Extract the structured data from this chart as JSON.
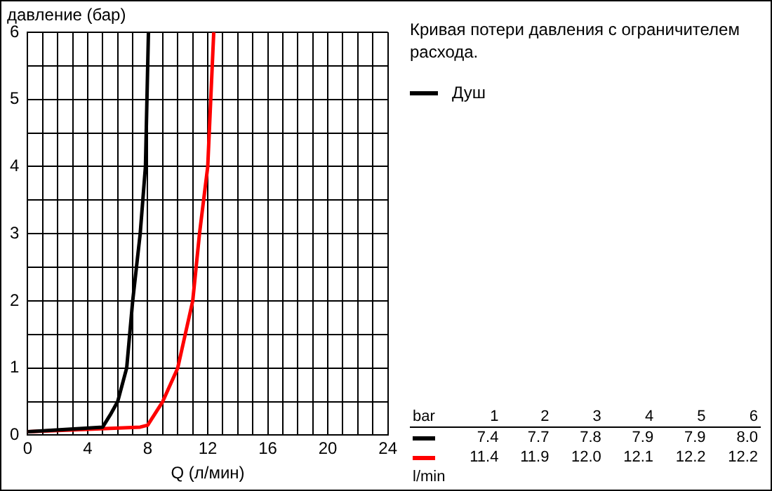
{
  "chart_data": {
    "type": "line",
    "title": "Кривая потери давления с ограничителем расхода.",
    "xlabel": "Q (л/мин)",
    "ylabel": "давление (бар)",
    "xlim": [
      0,
      24
    ],
    "ylim": [
      0,
      6
    ],
    "xticks": [
      0,
      {
        "value": 1,
        "label": null
      },
      {
        "value": 2,
        "label": null
      },
      {
        "value": 3,
        "label": null
      },
      4,
      {
        "value": 5,
        "label": null
      },
      {
        "value": 6,
        "label": null
      },
      {
        "value": 7,
        "label": null
      },
      8,
      {
        "value": 9,
        "label": null
      },
      {
        "value": 10,
        "label": null
      },
      {
        "value": 11,
        "label": null
      },
      12,
      {
        "value": 13,
        "label": null
      },
      {
        "value": 14,
        "label": null
      },
      {
        "value": 15,
        "label": null
      },
      16,
      {
        "value": 17,
        "label": null
      },
      {
        "value": 18,
        "label": null
      },
      {
        "value": 19,
        "label": null
      },
      20,
      {
        "value": 21,
        "label": null
      },
      {
        "value": 22,
        "label": null
      },
      {
        "value": 23,
        "label": null
      },
      24
    ],
    "yticks": [
      0,
      {
        "value": 0.5,
        "label": null
      },
      1,
      {
        "value": 1.5,
        "label": null
      },
      2,
      {
        "value": 2.5,
        "label": null
      },
      3,
      {
        "value": 3.5,
        "label": null
      },
      4,
      {
        "value": 4.5,
        "label": null
      },
      5,
      {
        "value": 5.5,
        "label": null
      },
      6
    ],
    "grid": true,
    "legend": "right",
    "marker": "none",
    "line_style": "solid",
    "series": [
      {
        "name": "Душ",
        "color": "#000000",
        "x": [
          0,
          5,
          5.5,
          6,
          6.6,
          7,
          7.5,
          7.85,
          7.95,
          8.05
        ],
        "values": [
          0.05,
          0.12,
          0.3,
          0.5,
          1,
          2,
          3,
          4,
          5,
          6
        ]
      },
      {
        "color": "#ff0000",
        "x": [
          0,
          7.5,
          8,
          9,
          10,
          11,
          11.45,
          12,
          12.2,
          12.4
        ],
        "values": [
          0.05,
          0.12,
          0.15,
          0.5,
          1,
          2,
          3,
          4,
          5,
          6
        ]
      }
    ],
    "annotations": [
      "bar 1 2 3 4 5 6",
      "7.4 7.7 7.8 7.9 7.9 8.0",
      "11.4 11.9 12.0 12.1 12.2 12.2",
      "l/min"
    ]
  }
}
